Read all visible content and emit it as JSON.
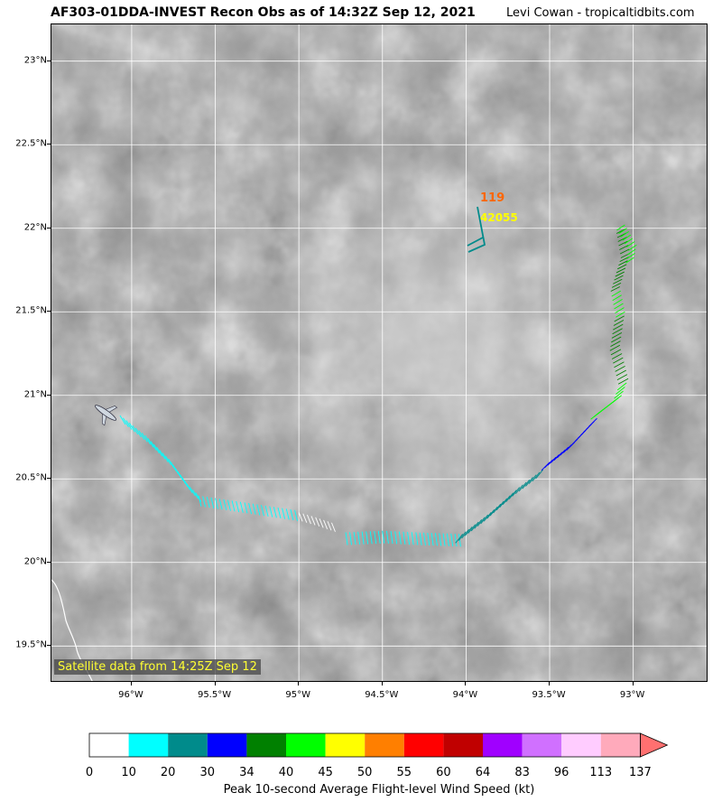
{
  "header": {
    "title": "AF303-01DDA-INVEST Recon Obs as of 14:32Z Sep 12, 2021",
    "credit": "Levi Cowan - tropicaltidbits.com"
  },
  "map": {
    "lon_range": [
      -96.48,
      -92.55
    ],
    "lat_range": [
      19.28,
      23.22
    ],
    "lat_ticks": [
      "23°N",
      "22.5°N",
      "22°N",
      "21.5°N",
      "21°N",
      "20.5°N",
      "20°N",
      "19.5°N"
    ],
    "lon_ticks": [
      "96°W",
      "95.5°W",
      "95°W",
      "94.5°W",
      "94°W",
      "93.5°W",
      "93°W"
    ],
    "satellite_note": "Satellite data from 14:25Z Sep 12",
    "dropsonde": {
      "pressure": "119",
      "station": "42055"
    },
    "colors": {
      "pressure_label": "#ff6600",
      "station_label": "#ffff00",
      "grid": "#ffffff",
      "coastline": "#ffffff"
    },
    "flight_track_icon": "aircraft-icon"
  },
  "colorbar": {
    "title": "Peak 10-second Average Flight-level Wind Speed (kt)",
    "ticks": [
      "0",
      "10",
      "20",
      "30",
      "34",
      "40",
      "45",
      "50",
      "55",
      "60",
      "64",
      "83",
      "96",
      "113",
      "137"
    ],
    "colors": [
      "#ffffff",
      "#00ffff",
      "#008b8b",
      "#0000ff",
      "#008000",
      "#00ff00",
      "#ffff00",
      "#ff7f00",
      "#ff0000",
      "#c00000",
      "#a000ff",
      "#d070ff",
      "#ffccff",
      "#ffaabb"
    ],
    "extend_color": "#ff7070"
  }
}
